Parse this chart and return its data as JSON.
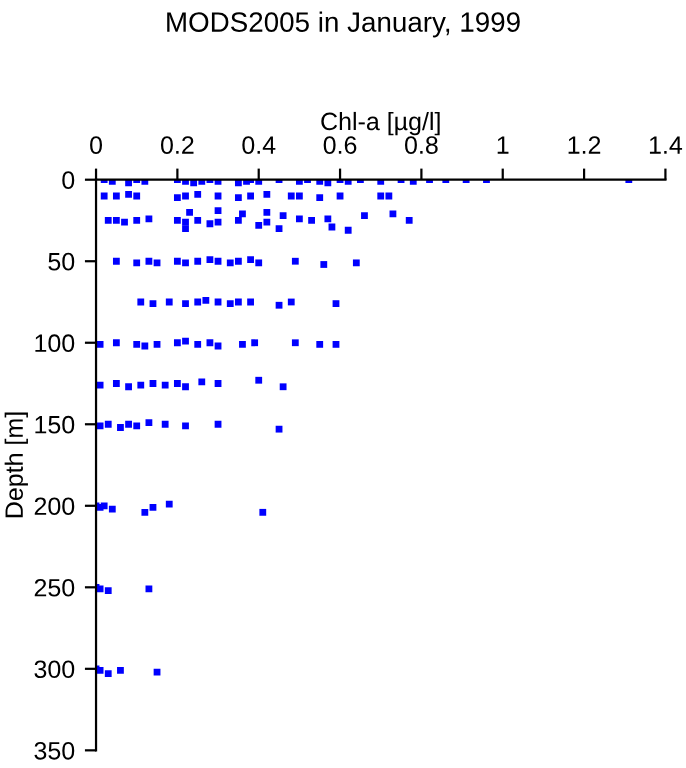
{
  "chart_data": {
    "type": "scatter",
    "title": "MODS2005 in January, 1999",
    "xlabel": "Chl-a [µg/l]",
    "ylabel": "Depth [m]",
    "x": [
      0.02,
      0.04,
      0.08,
      0.1,
      0.12,
      0.2,
      0.22,
      0.24,
      0.26,
      0.28,
      0.3,
      0.35,
      0.37,
      0.38,
      0.4,
      0.45,
      0.5,
      0.52,
      0.55,
      0.57,
      0.6,
      0.62,
      0.65,
      0.7,
      0.75,
      0.78,
      0.82,
      0.86,
      0.91,
      0.96,
      1.31,
      0.02,
      0.05,
      0.08,
      0.1,
      0.2,
      0.22,
      0.25,
      0.3,
      0.35,
      0.38,
      0.42,
      0.48,
      0.5,
      0.55,
      0.6,
      0.7,
      0.72,
      0.23,
      0.3,
      0.36,
      0.42,
      0.46,
      0.57,
      0.03,
      0.05,
      0.07,
      0.1,
      0.13,
      0.2,
      0.22,
      0.25,
      0.28,
      0.3,
      0.35,
      0.42,
      0.5,
      0.53,
      0.58,
      0.66,
      0.73,
      0.77,
      0.22,
      0.4,
      0.45,
      0.62,
      0.05,
      0.1,
      0.13,
      0.15,
      0.2,
      0.22,
      0.25,
      0.28,
      0.3,
      0.33,
      0.35,
      0.38,
      0.4,
      0.49,
      0.56,
      0.64,
      0.11,
      0.14,
      0.18,
      0.22,
      0.25,
      0.27,
      0.3,
      0.33,
      0.35,
      0.38,
      0.45,
      0.48,
      0.59,
      0.01,
      0.05,
      0.1,
      0.12,
      0.15,
      0.2,
      0.22,
      0.25,
      0.28,
      0.3,
      0.36,
      0.39,
      0.49,
      0.55,
      0.59,
      0.01,
      0.05,
      0.08,
      0.11,
      0.14,
      0.17,
      0.2,
      0.22,
      0.26,
      0.3,
      0.4,
      0.46,
      0.01,
      0.03,
      0.06,
      0.08,
      0.1,
      0.13,
      0.17,
      0.22,
      0.3,
      0.45,
      0.0,
      0.01,
      0.02,
      0.04,
      0.12,
      0.14,
      0.18,
      0.41,
      0.0,
      0.01,
      0.03,
      0.13,
      0.0,
      0.01,
      0.03,
      0.06,
      0.15
    ],
    "values": [
      0,
      1,
      2,
      0,
      1,
      0,
      1,
      2,
      1,
      0,
      1,
      2,
      1,
      0,
      1,
      0,
      1,
      0,
      1,
      2,
      0,
      1,
      0,
      1,
      0,
      1,
      0,
      0,
      0,
      0,
      0,
      10,
      10,
      9,
      10,
      11,
      10,
      9,
      10,
      11,
      10,
      9,
      10,
      10,
      11,
      10,
      10,
      10,
      20,
      19,
      21,
      20,
      22,
      24,
      25,
      25,
      26,
      25,
      24,
      25,
      26,
      25,
      27,
      26,
      25,
      26,
      24,
      25,
      29,
      22,
      21,
      25,
      30,
      28,
      30,
      31,
      50,
      51,
      50,
      51,
      50,
      51,
      50,
      49,
      50,
      51,
      50,
      49,
      51,
      50,
      52,
      51,
      75,
      76,
      75,
      76,
      75,
      74,
      75,
      76,
      75,
      75,
      77,
      75,
      76,
      101,
      100,
      101,
      102,
      101,
      100,
      99,
      101,
      100,
      102,
      101,
      100,
      100,
      101,
      101,
      126,
      125,
      127,
      126,
      125,
      126,
      125,
      127,
      124,
      125,
      123,
      127,
      151,
      150,
      152,
      150,
      151,
      149,
      150,
      151,
      150,
      153,
      200,
      201,
      200,
      202,
      204,
      201,
      199,
      204,
      250,
      251,
      252,
      251,
      300,
      301,
      303,
      301,
      302
    ],
    "color": "#0000ff",
    "marker": "square",
    "xlim": [
      0,
      1.4
    ],
    "xticks": [
      0,
      0.2,
      0.4,
      0.6,
      0.8,
      1,
      1.2,
      1.4
    ],
    "ylim": [
      350,
      0
    ],
    "yticks": [
      0,
      50,
      100,
      150,
      200,
      250,
      300,
      350
    ]
  }
}
